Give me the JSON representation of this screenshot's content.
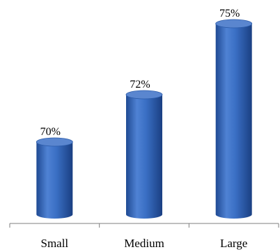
{
  "chart_data": {
    "type": "bar",
    "categories": [
      "Small",
      "Medium",
      "Large"
    ],
    "values": [
      70,
      72,
      75
    ],
    "value_labels": [
      "70%",
      "72%",
      "75%"
    ],
    "title": "",
    "xlabel": "",
    "ylabel": "",
    "bar_style": "cylinder",
    "grid": false,
    "colors": {
      "bar": "#3a6fc4",
      "bar_dark": "#1f4a93",
      "bar_light": "#6f9be0",
      "top": "#5a86cf",
      "axis": "#7f7f7f",
      "text": "#000000"
    }
  }
}
